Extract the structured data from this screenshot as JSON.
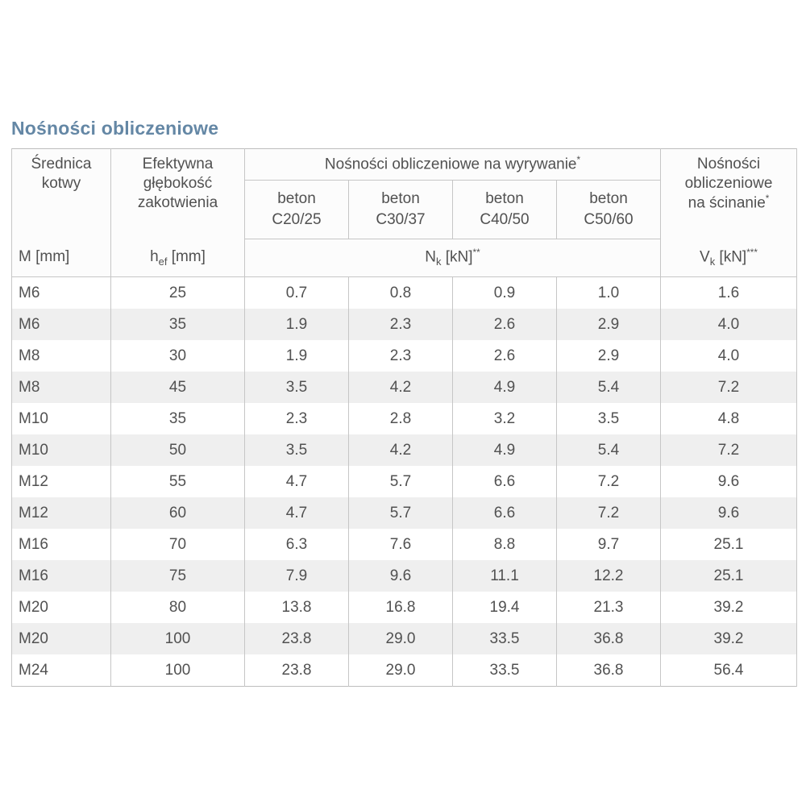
{
  "title": "Nośności obliczeniowe",
  "colors": {
    "title": "#6487a5",
    "border": "#c6c6c6",
    "row_stripe": "#efefef",
    "text": "#515151"
  },
  "table": {
    "anchor_col": {
      "lines": [
        "Średnica",
        "kotwy"
      ],
      "unit": {
        "base": "M",
        "sub": "",
        "rest": " [mm]",
        "sup": ""
      }
    },
    "depth_col": {
      "lines": [
        "Efektywna",
        "głębokość",
        "zakotwienia"
      ],
      "unit": {
        "base": "h",
        "sub": "ef",
        "rest": " [mm]",
        "sup": ""
      }
    },
    "pullout_group": {
      "label": "Nośności obliczeniowe na wyrywanie",
      "sup": "*",
      "subcols": [
        {
          "line1": "beton",
          "line2": "C20/25"
        },
        {
          "line1": "beton",
          "line2": "C30/37"
        },
        {
          "line1": "beton",
          "line2": "C40/50"
        },
        {
          "line1": "beton",
          "line2": "C50/60"
        }
      ],
      "unit": {
        "base": "N",
        "sub": "k",
        "rest": " [kN]",
        "sup": "**"
      }
    },
    "shear_col": {
      "lines": [
        "Nośności",
        "obliczeniowe",
        "na ścinanie"
      ],
      "sup": "*",
      "unit": {
        "base": "V",
        "sub": "k",
        "rest": " [kN]",
        "sup": "***"
      }
    },
    "rows": [
      [
        "M6",
        "25",
        "0.7",
        "0.8",
        "0.9",
        "1.0",
        "1.6"
      ],
      [
        "M6",
        "35",
        "1.9",
        "2.3",
        "2.6",
        "2.9",
        "4.0"
      ],
      [
        "M8",
        "30",
        "1.9",
        "2.3",
        "2.6",
        "2.9",
        "4.0"
      ],
      [
        "M8",
        "45",
        "3.5",
        "4.2",
        "4.9",
        "5.4",
        "7.2"
      ],
      [
        "M10",
        "35",
        "2.3",
        "2.8",
        "3.2",
        "3.5",
        "4.8"
      ],
      [
        "M10",
        "50",
        "3.5",
        "4.2",
        "4.9",
        "5.4",
        "7.2"
      ],
      [
        "M12",
        "55",
        "4.7",
        "5.7",
        "6.6",
        "7.2",
        "9.6"
      ],
      [
        "M12",
        "60",
        "4.7",
        "5.7",
        "6.6",
        "7.2",
        "9.6"
      ],
      [
        "M16",
        "70",
        "6.3",
        "7.6",
        "8.8",
        "9.7",
        "25.1"
      ],
      [
        "M16",
        "75",
        "7.9",
        "9.6",
        "11.1",
        "12.2",
        "25.1"
      ],
      [
        "M20",
        "80",
        "13.8",
        "16.8",
        "19.4",
        "21.3",
        "39.2"
      ],
      [
        "M20",
        "100",
        "23.8",
        "29.0",
        "33.5",
        "36.8",
        "39.2"
      ],
      [
        "M24",
        "100",
        "23.8",
        "29.0",
        "33.5",
        "36.8",
        "56.4"
      ]
    ]
  }
}
